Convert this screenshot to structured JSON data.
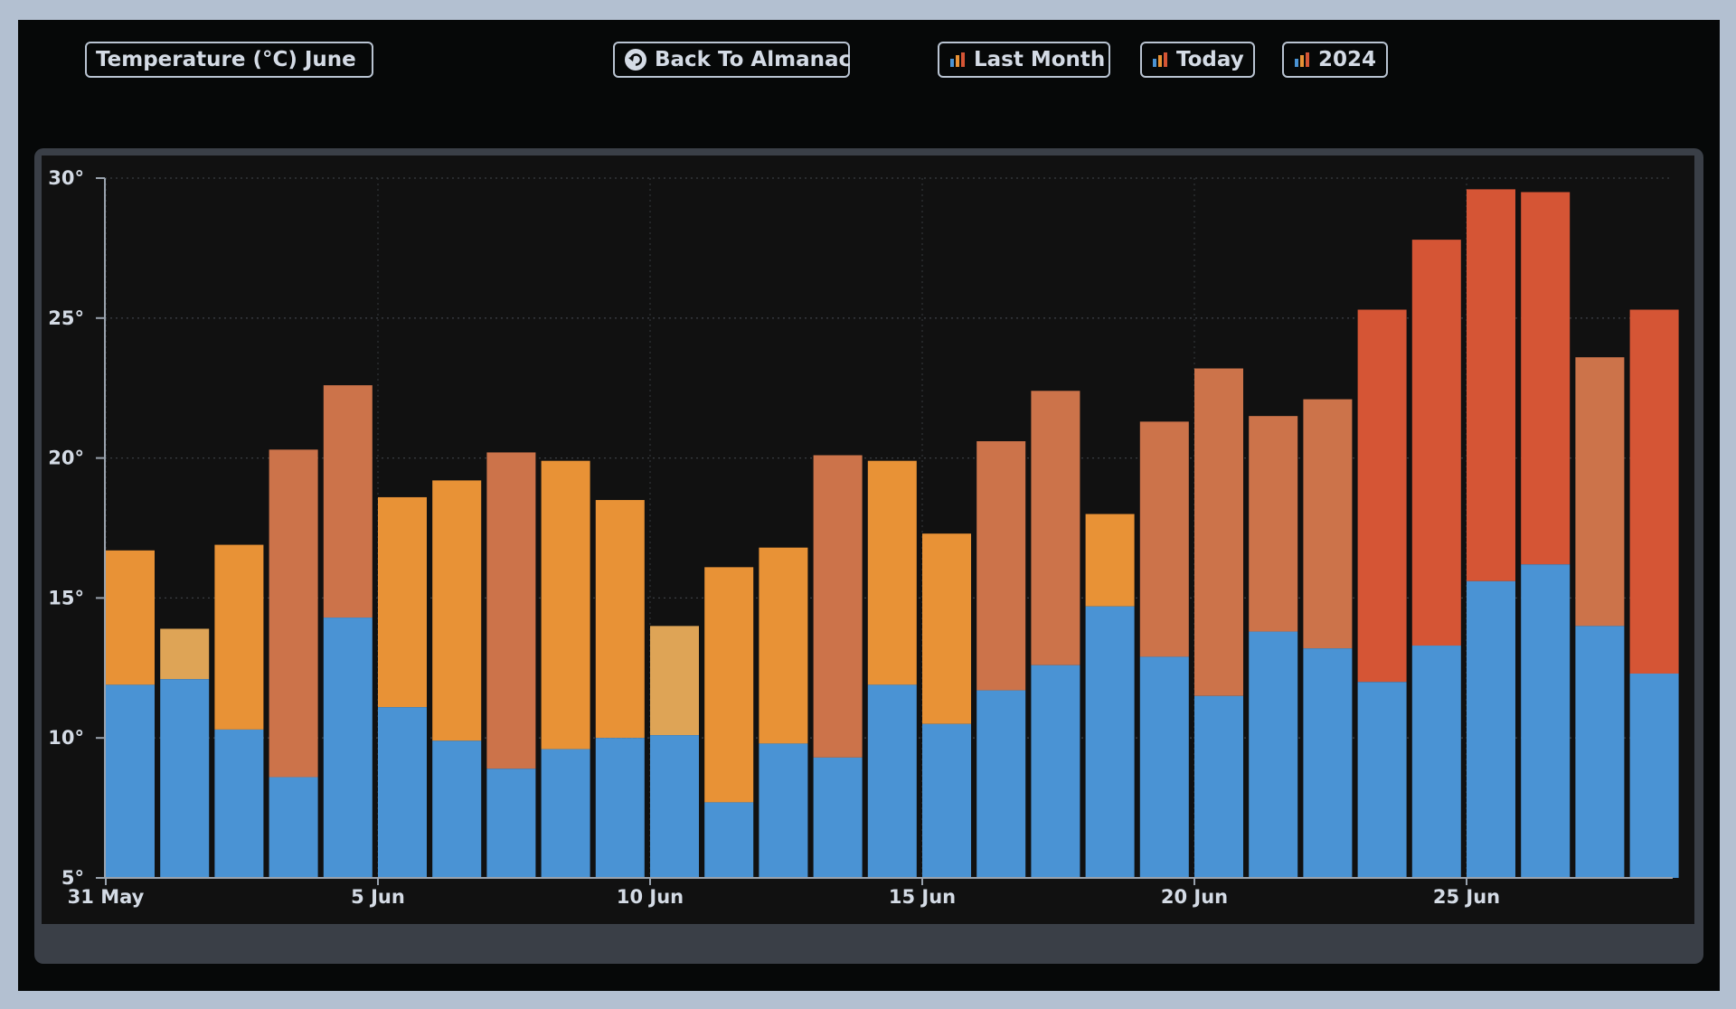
{
  "header": {
    "title_label": "Temperature (°C) June",
    "back_label": "Back To Almanac",
    "back_icon": "undo-circle-icon",
    "last_month_label": "Last Month",
    "today_label": "Today",
    "year_label": "2024",
    "chart_icon": "bar-chart-icon"
  },
  "colors": {
    "background": "#b3c0d1",
    "frame": "#060808",
    "plot_bg": "#111111",
    "min_bar": "#4a93d4",
    "max_warm_light": "#dea456",
    "max_warm": "#e89236",
    "max_hot": "#cc734a",
    "max_very_hot": "#d55535"
  },
  "chart_data": {
    "type": "bar",
    "stacked": true,
    "y_tick_labels": [
      "5°",
      "10°",
      "15°",
      "20°",
      "25°",
      "30°"
    ],
    "y_ticks": [
      5,
      10,
      15,
      20,
      25,
      30
    ],
    "x_tick_labels": [
      "31 May",
      "5 Jun",
      "10 Jun",
      "15 Jun",
      "20 Jun",
      "25 Jun"
    ],
    "ylim": [
      5,
      30
    ],
    "grid": true,
    "categories": [
      "31 May",
      "1 Jun",
      "2 Jun",
      "3 Jun",
      "4 Jun",
      "5 Jun",
      "6 Jun",
      "7 Jun",
      "8 Jun",
      "9 Jun",
      "10 Jun",
      "11 Jun",
      "12 Jun",
      "13 Jun",
      "14 Jun",
      "15 Jun",
      "16 Jun",
      "17 Jun",
      "18 Jun",
      "19 Jun",
      "20 Jun",
      "21 Jun",
      "22 Jun",
      "23 Jun",
      "24 Jun",
      "25 Jun",
      "26 Jun",
      "27 Jun",
      "28 Jun"
    ],
    "min": [
      11.9,
      12.1,
      10.3,
      8.6,
      14.3,
      11.1,
      9.9,
      8.9,
      9.6,
      10.0,
      10.1,
      7.7,
      9.8,
      9.3,
      11.9,
      10.5,
      11.7,
      12.6,
      14.7,
      12.9,
      11.5,
      13.8,
      13.2,
      12.0,
      13.3,
      15.6,
      16.2,
      14.0,
      12.3
    ],
    "max": [
      16.7,
      13.9,
      16.9,
      20.3,
      22.6,
      18.6,
      19.2,
      20.2,
      19.9,
      18.5,
      14.0,
      16.1,
      16.8,
      20.1,
      19.9,
      17.3,
      20.6,
      22.4,
      18.0,
      21.3,
      23.2,
      21.5,
      22.1,
      25.3,
      27.8,
      29.6,
      29.5,
      23.6,
      25.3
    ]
  }
}
